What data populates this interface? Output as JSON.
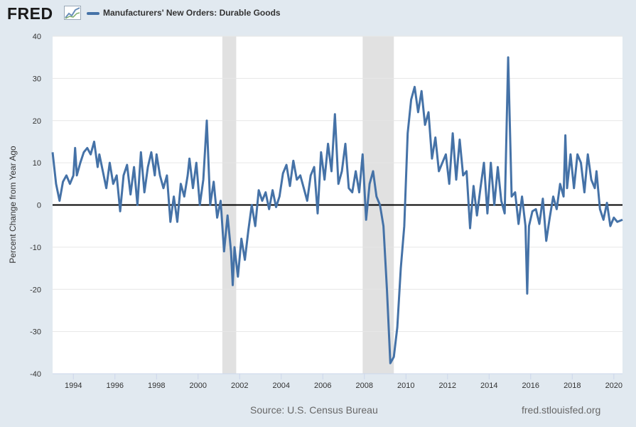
{
  "header": {
    "logo_text": "FRED",
    "logo_icon": "line-chart-icon",
    "legend_label": "Manufacturers' New Orders: Durable Goods",
    "legend_color": "#4572a7"
  },
  "footer": {
    "source": "Source: U.S. Census Bureau",
    "site": "fred.stlouisfed.org"
  },
  "chart_data": {
    "type": "line",
    "title": "",
    "xlabel": "",
    "ylabel": "Percent Change from Year Ago",
    "xlim": [
      "1993-01",
      "2020-06"
    ],
    "ylim": [
      -40,
      40
    ],
    "y_ticks": [
      40,
      30,
      20,
      10,
      0,
      -10,
      -20,
      -30,
      -40
    ],
    "x_ticks": [
      "1994",
      "1996",
      "1998",
      "2000",
      "2002",
      "2004",
      "2006",
      "2008",
      "2010",
      "2012",
      "2014",
      "2016",
      "2018",
      "2020"
    ],
    "grid": true,
    "legend_position": "top-left",
    "line_color": "#4572a7",
    "zero_line": true,
    "recessions": [
      {
        "start": "2001-03",
        "end": "2001-11"
      },
      {
        "start": "2007-12",
        "end": "2009-06"
      }
    ],
    "series": [
      {
        "name": "Manufacturers' New Orders: Durable Goods",
        "points": [
          [
            "1993-01",
            12.5
          ],
          [
            "1993-03",
            5
          ],
          [
            "1993-05",
            1
          ],
          [
            "1993-07",
            5.5
          ],
          [
            "1993-09",
            7
          ],
          [
            "1993-11",
            5
          ],
          [
            "1994-01",
            7
          ],
          [
            "1994-02",
            13.5
          ],
          [
            "1994-03",
            7
          ],
          [
            "1994-05",
            10
          ],
          [
            "1994-07",
            12.5
          ],
          [
            "1994-09",
            13.5
          ],
          [
            "1994-11",
            12
          ],
          [
            "1995-01",
            15
          ],
          [
            "1995-03",
            9
          ],
          [
            "1995-04",
            12
          ],
          [
            "1995-06",
            8
          ],
          [
            "1995-08",
            4
          ],
          [
            "1995-10",
            10
          ],
          [
            "1995-12",
            5
          ],
          [
            "1996-02",
            7
          ],
          [
            "1996-04",
            -1.5
          ],
          [
            "1996-06",
            7
          ],
          [
            "1996-08",
            9.5
          ],
          [
            "1996-10",
            2.5
          ],
          [
            "1996-12",
            9
          ],
          [
            "1997-02",
            0
          ],
          [
            "1997-04",
            12.5
          ],
          [
            "1997-06",
            3
          ],
          [
            "1997-08",
            9
          ],
          [
            "1997-10",
            12.5
          ],
          [
            "1997-12",
            7
          ],
          [
            "1998-01",
            12
          ],
          [
            "1998-03",
            7
          ],
          [
            "1998-05",
            4
          ],
          [
            "1998-07",
            7
          ],
          [
            "1998-09",
            -4
          ],
          [
            "1998-11",
            2
          ],
          [
            "1999-01",
            -4
          ],
          [
            "1999-03",
            5
          ],
          [
            "1999-05",
            2
          ],
          [
            "1999-07",
            7
          ],
          [
            "1999-08",
            11
          ],
          [
            "1999-10",
            4
          ],
          [
            "1999-12",
            10
          ],
          [
            "2000-02",
            0
          ],
          [
            "2000-04",
            6
          ],
          [
            "2000-06",
            20
          ],
          [
            "2000-08",
            0
          ],
          [
            "2000-10",
            5.5
          ],
          [
            "2000-12",
            -3
          ],
          [
            "2001-02",
            1
          ],
          [
            "2001-04",
            -11
          ],
          [
            "2001-06",
            -2.5
          ],
          [
            "2001-08",
            -11
          ],
          [
            "2001-09",
            -19
          ],
          [
            "2001-10",
            -10
          ],
          [
            "2001-12",
            -17
          ],
          [
            "2002-02",
            -8
          ],
          [
            "2002-04",
            -13
          ],
          [
            "2002-06",
            -6
          ],
          [
            "2002-08",
            0
          ],
          [
            "2002-10",
            -5
          ],
          [
            "2002-12",
            3.5
          ],
          [
            "2003-02",
            1
          ],
          [
            "2003-04",
            3
          ],
          [
            "2003-06",
            -1
          ],
          [
            "2003-08",
            3.5
          ],
          [
            "2003-10",
            -0.5
          ],
          [
            "2003-12",
            2
          ],
          [
            "2004-02",
            7.5
          ],
          [
            "2004-04",
            9.5
          ],
          [
            "2004-06",
            4.5
          ],
          [
            "2004-08",
            10.5
          ],
          [
            "2004-10",
            6
          ],
          [
            "2004-12",
            7
          ],
          [
            "2005-02",
            4
          ],
          [
            "2005-04",
            1
          ],
          [
            "2005-06",
            7
          ],
          [
            "2005-08",
            9
          ],
          [
            "2005-10",
            -2
          ],
          [
            "2005-12",
            12.5
          ],
          [
            "2006-02",
            6
          ],
          [
            "2006-04",
            14.5
          ],
          [
            "2006-06",
            8
          ],
          [
            "2006-08",
            21.5
          ],
          [
            "2006-10",
            5
          ],
          [
            "2006-12",
            8
          ],
          [
            "2007-02",
            14.5
          ],
          [
            "2007-04",
            4
          ],
          [
            "2007-06",
            3
          ],
          [
            "2007-08",
            8
          ],
          [
            "2007-10",
            3
          ],
          [
            "2007-12",
            12
          ],
          [
            "2008-02",
            -3.5
          ],
          [
            "2008-04",
            5
          ],
          [
            "2008-06",
            8
          ],
          [
            "2008-08",
            2
          ],
          [
            "2008-10",
            0
          ],
          [
            "2008-12",
            -5
          ],
          [
            "2009-02",
            -20
          ],
          [
            "2009-04",
            -37.5
          ],
          [
            "2009-06",
            -36
          ],
          [
            "2009-08",
            -29
          ],
          [
            "2009-10",
            -15
          ],
          [
            "2009-12",
            -5
          ],
          [
            "2010-02",
            17
          ],
          [
            "2010-04",
            25
          ],
          [
            "2010-06",
            28
          ],
          [
            "2010-08",
            22
          ],
          [
            "2010-10",
            27
          ],
          [
            "2010-12",
            19
          ],
          [
            "2011-02",
            22
          ],
          [
            "2011-04",
            11
          ],
          [
            "2011-06",
            16
          ],
          [
            "2011-08",
            8
          ],
          [
            "2011-10",
            10
          ],
          [
            "2011-12",
            12
          ],
          [
            "2012-02",
            5
          ],
          [
            "2012-04",
            17
          ],
          [
            "2012-06",
            6
          ],
          [
            "2012-08",
            15.5
          ],
          [
            "2012-10",
            7
          ],
          [
            "2012-12",
            8
          ],
          [
            "2013-02",
            -5.5
          ],
          [
            "2013-04",
            4.5
          ],
          [
            "2013-06",
            -2.5
          ],
          [
            "2013-08",
            4
          ],
          [
            "2013-10",
            10
          ],
          [
            "2013-12",
            -2
          ],
          [
            "2014-02",
            10
          ],
          [
            "2014-04",
            0
          ],
          [
            "2014-06",
            9
          ],
          [
            "2014-08",
            1
          ],
          [
            "2014-10",
            -2
          ],
          [
            "2014-12",
            35
          ],
          [
            "2015-02",
            2
          ],
          [
            "2015-04",
            3
          ],
          [
            "2015-06",
            -4.5
          ],
          [
            "2015-08",
            2
          ],
          [
            "2015-10",
            -5
          ],
          [
            "2015-11",
            -21
          ],
          [
            "2015-12",
            -5
          ],
          [
            "2016-02",
            -1.5
          ],
          [
            "2016-04",
            -1
          ],
          [
            "2016-06",
            -4.5
          ],
          [
            "2016-08",
            1.5
          ],
          [
            "2016-10",
            -8.5
          ],
          [
            "2016-12",
            -3
          ],
          [
            "2017-02",
            2
          ],
          [
            "2017-04",
            -1
          ],
          [
            "2017-06",
            5
          ],
          [
            "2017-08",
            2
          ],
          [
            "2017-09",
            16.5
          ],
          [
            "2017-10",
            4
          ],
          [
            "2017-12",
            12
          ],
          [
            "2018-02",
            4
          ],
          [
            "2018-04",
            12
          ],
          [
            "2018-06",
            10
          ],
          [
            "2018-08",
            3
          ],
          [
            "2018-10",
            12
          ],
          [
            "2018-12",
            6
          ],
          [
            "2019-02",
            4
          ],
          [
            "2019-03",
            8
          ],
          [
            "2019-05",
            -1
          ],
          [
            "2019-07",
            -3.5
          ],
          [
            "2019-09",
            0.5
          ],
          [
            "2019-11",
            -5
          ],
          [
            "2020-01",
            -3
          ],
          [
            "2020-03",
            -4
          ],
          [
            "2020-06",
            -3.5
          ]
        ]
      }
    ]
  }
}
